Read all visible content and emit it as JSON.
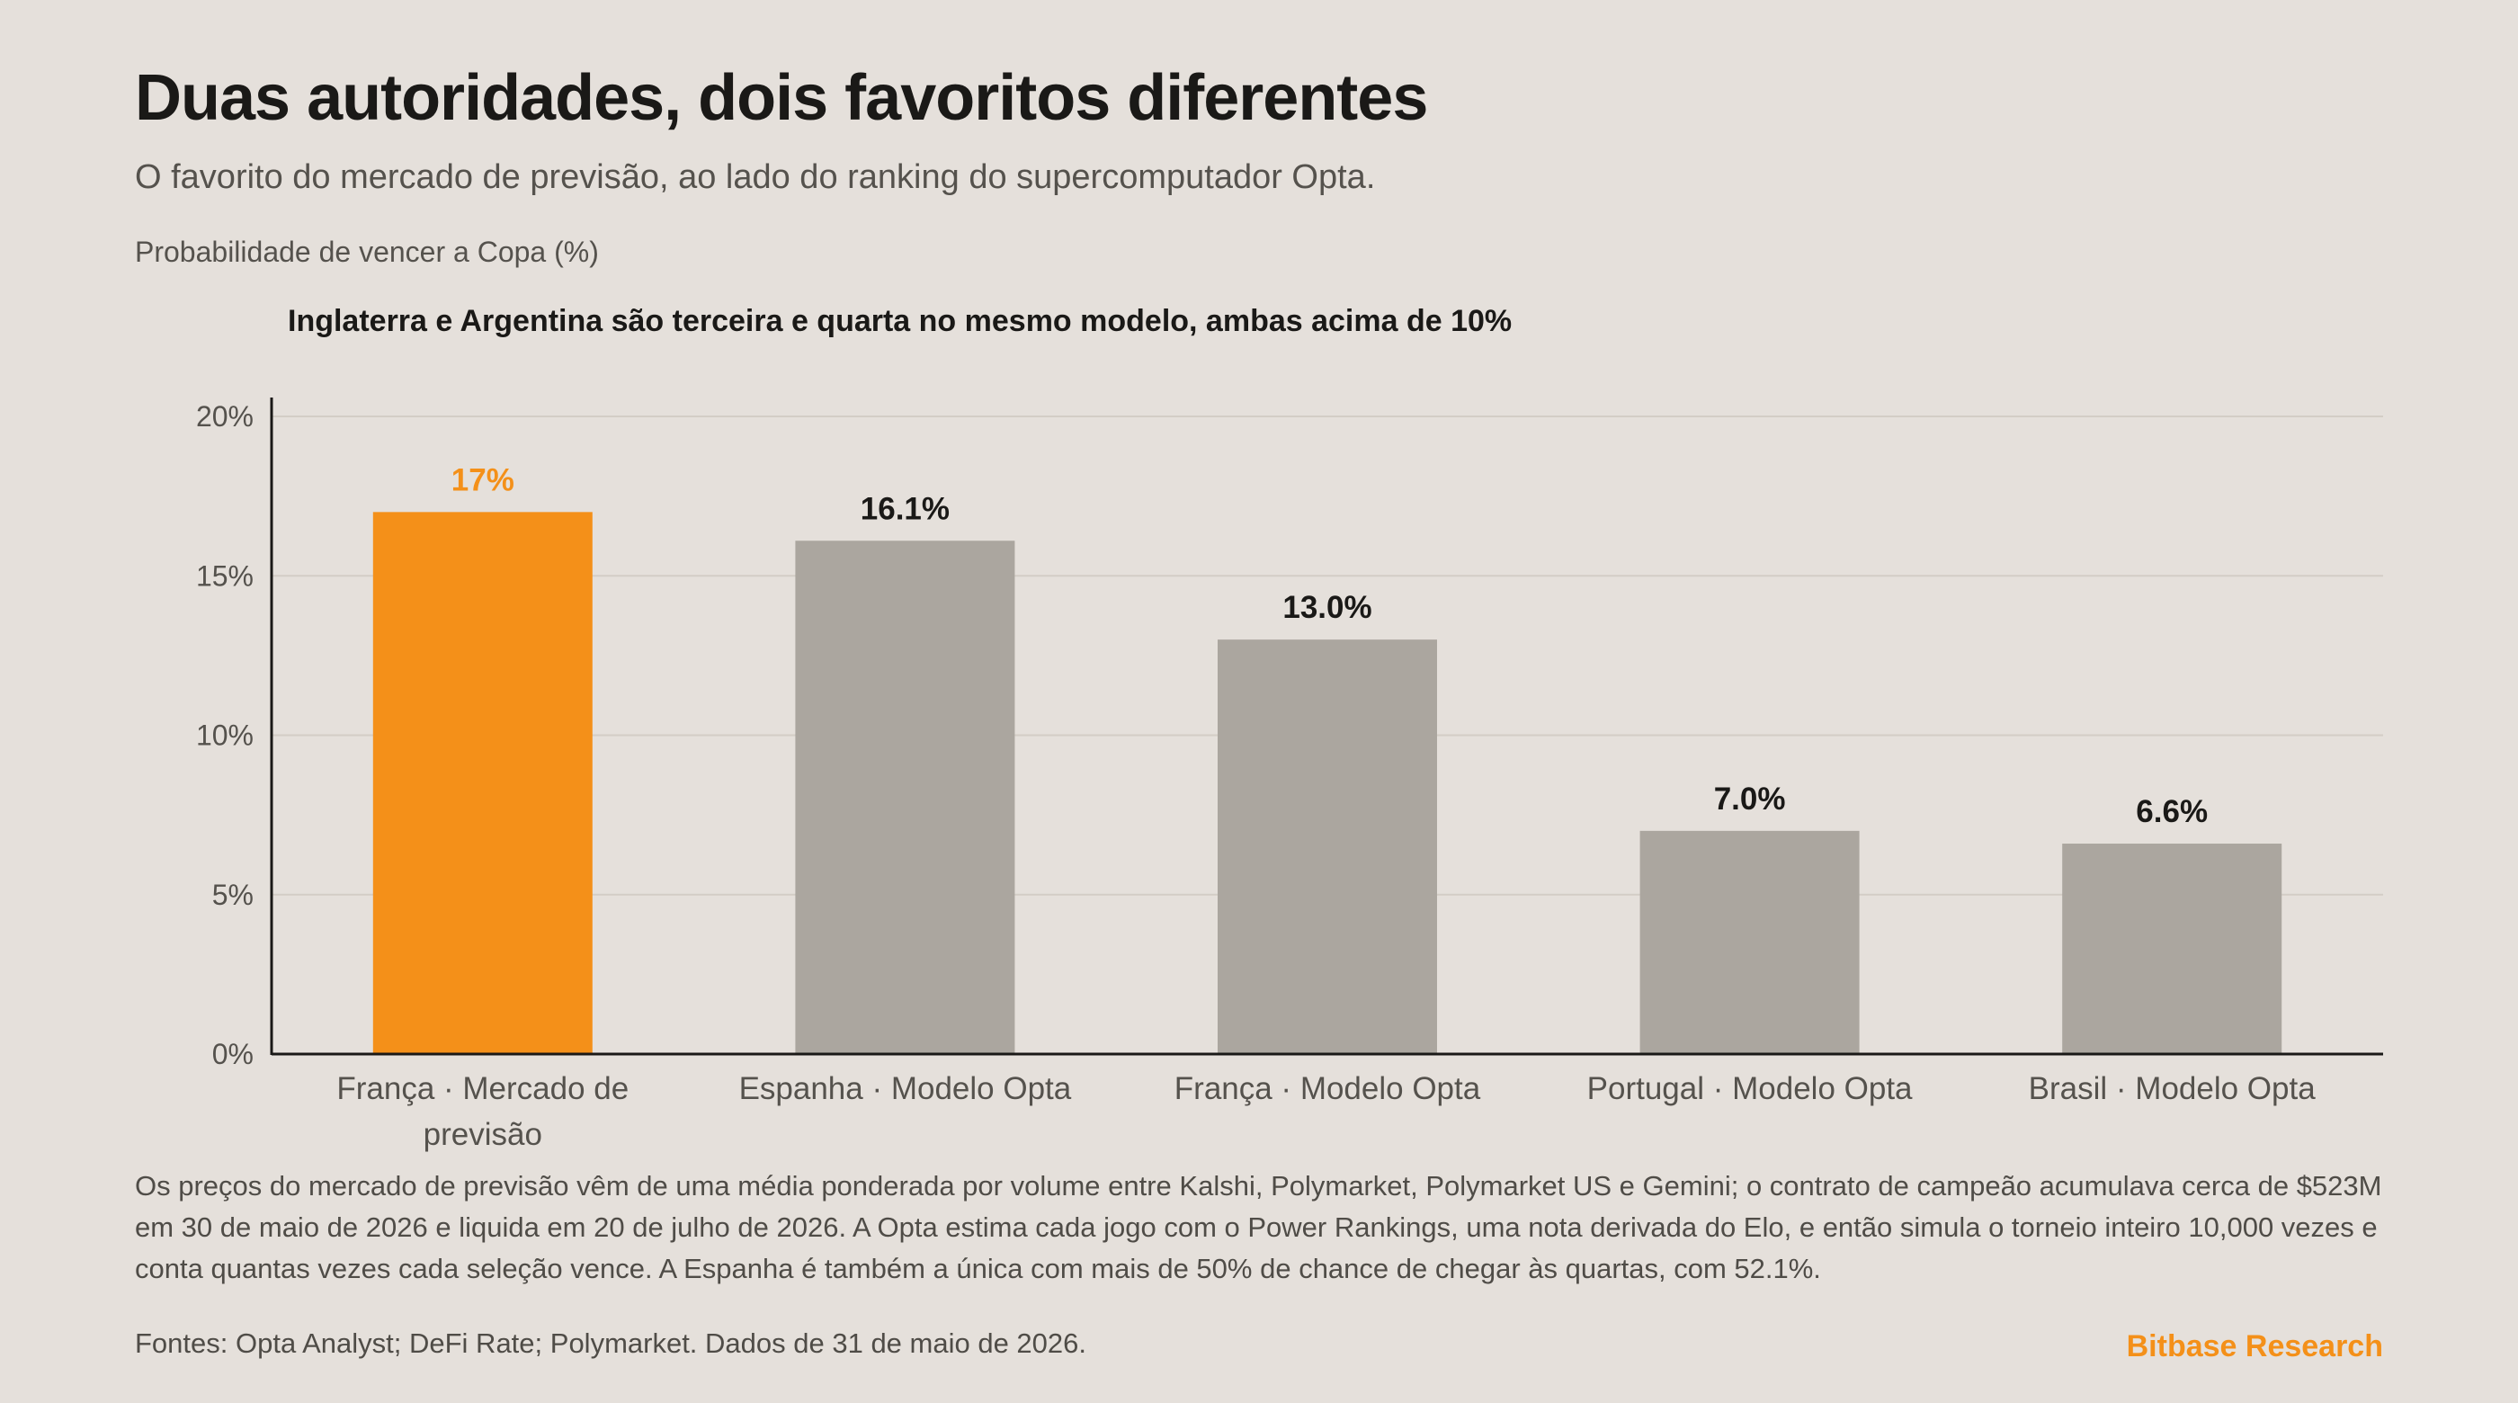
{
  "header": {
    "title": "Duas autoridades, dois favoritos diferentes",
    "subtitle": "O favorito do mercado de previsão, ao lado do ranking do supercomputador Opta.",
    "unit_label": "Probabilidade de vencer a Copa (%)"
  },
  "colors": {
    "background": "#e5e0db",
    "highlight": "#f49019",
    "bar": "#aba69f",
    "grid": "#d3cdc6",
    "axis": "#1a1917",
    "text": "#1a1917",
    "muted": "#55524d"
  },
  "chart_data": {
    "type": "bar",
    "annotation": "Inglaterra e Argentina são terceira e quarta no mesmo modelo, ambas acima de 10%",
    "categories": [
      [
        "França · Mercado de",
        "previsão"
      ],
      [
        "Espanha · Modelo Opta"
      ],
      [
        "França · Modelo Opta"
      ],
      [
        "Portugal · Modelo Opta"
      ],
      [
        "Brasil · Modelo Opta"
      ]
    ],
    "values": [
      17,
      16.1,
      13.0,
      7.0,
      6.6
    ],
    "value_labels": [
      "17%",
      "16.1%",
      "13.0%",
      "7.0%",
      "6.6%"
    ],
    "highlight_index": 0,
    "ylim": [
      0,
      20
    ],
    "yticks": [
      0,
      5,
      10,
      15,
      20
    ],
    "ytick_labels": [
      "0%",
      "5%",
      "10%",
      "15%",
      "20%"
    ],
    "grid": true
  },
  "footer": {
    "note": "Os preços do mercado de previsão vêm de uma média ponderada por volume entre Kalshi, Polymarket, Polymarket US e Gemini; o contrato de campeão acumulava cerca de $523M em 30 de maio de 2026 e liquida em 20 de julho de 2026. A Opta estima cada jogo com o Power Rankings, uma nota derivada do Elo, e então simula o torneio inteiro 10,000 vezes e conta quantas vezes cada seleção vence. A Espanha é também a única com mais de 50% de chance de chegar às quartas, com 52.1%.",
    "sources": "Fontes: Opta Analyst; DeFi Rate; Polymarket. Dados de 31 de maio de 2026.",
    "brand": "Bitbase Research"
  }
}
